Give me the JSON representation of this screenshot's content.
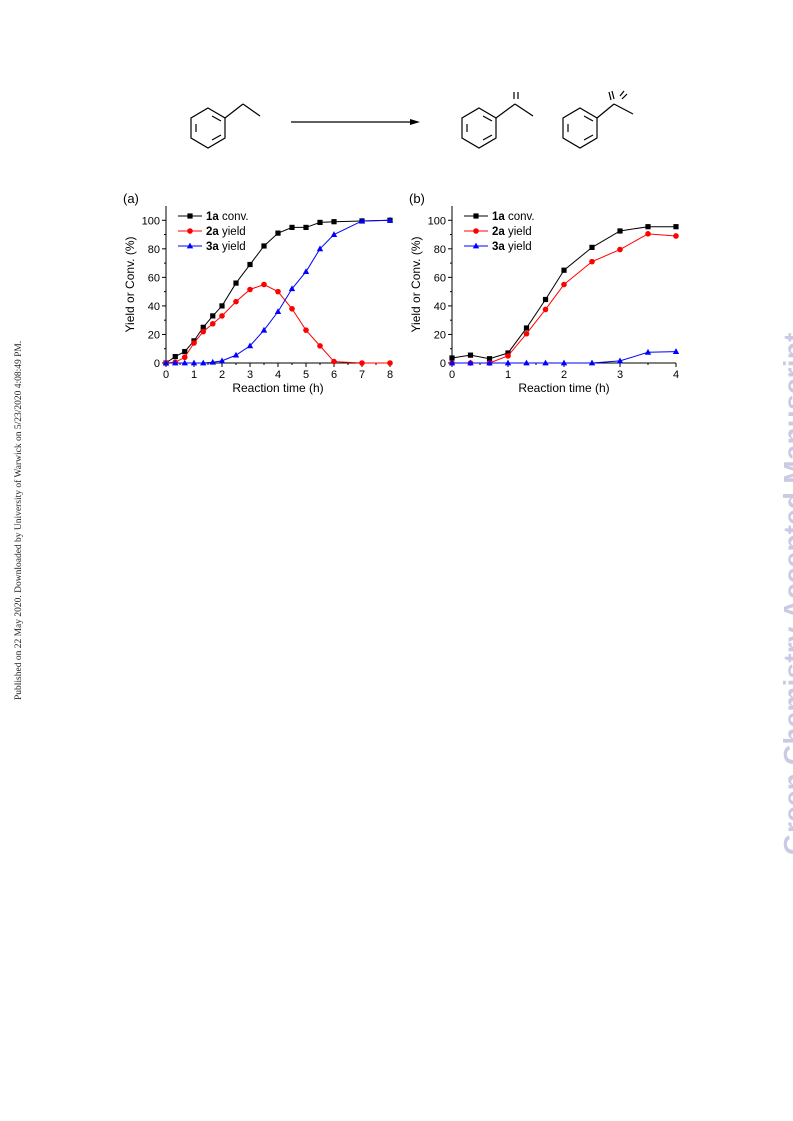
{
  "side_note": "Published on 22 May 2020. Downloaded by University of Warwick on 5/23/2020 4:08:49 PM.",
  "watermark": "Green Chemistry Accepted Manuscript",
  "chart_data": [
    {
      "type": "line",
      "panel_label": "(a)",
      "xlabel": "Reaction time (h)",
      "ylabel": "Yield or Conv. (%)",
      "xlim": [
        0,
        8
      ],
      "ylim": [
        0,
        110
      ],
      "xticks": [
        0,
        1,
        2,
        3,
        4,
        5,
        6,
        7,
        8
      ],
      "yticks": [
        0,
        20,
        40,
        60,
        80,
        100
      ],
      "legend_position": "top-left",
      "series": [
        {
          "name_bold": "1a",
          "name_rest": " conv.",
          "color": "#000000",
          "marker": "square",
          "x": [
            0,
            0.33,
            0.67,
            1,
            1.33,
            1.67,
            2,
            2.5,
            3,
            3.5,
            4,
            4.5,
            5,
            5.5,
            6,
            7,
            8
          ],
          "y": [
            0,
            4.5,
            8,
            15.5,
            25,
            33,
            40,
            56,
            69,
            82,
            91,
            95,
            95,
            98.5,
            99,
            99.5,
            100
          ]
        },
        {
          "name_bold": "2a",
          "name_rest": " yield",
          "color": "#ff0000",
          "marker": "circle",
          "x": [
            0,
            0.33,
            0.67,
            1,
            1.33,
            1.67,
            2,
            2.5,
            3,
            3.5,
            4,
            4.5,
            5,
            5.5,
            6,
            7,
            8
          ],
          "y": [
            0,
            0.5,
            4,
            14,
            22,
            27.5,
            33,
            43,
            51.5,
            55,
            50,
            38,
            23,
            12,
            1,
            0,
            0
          ]
        },
        {
          "name_bold": "3a",
          "name_rest": " yield",
          "color": "#0000ff",
          "marker": "triangle",
          "x": [
            0,
            0.33,
            0.67,
            1,
            1.33,
            1.67,
            2,
            2.5,
            3,
            3.5,
            4,
            4.5,
            5,
            5.5,
            6,
            7,
            8
          ],
          "y": [
            0,
            0,
            0,
            0,
            0,
            0.5,
            1.5,
            5.5,
            12,
            23,
            36,
            52,
            64,
            80,
            90,
            99.5,
            100
          ]
        }
      ]
    },
    {
      "type": "line",
      "panel_label": "(b)",
      "xlabel": "Reaction time (h)",
      "ylabel": "Yield or Conv. (%)",
      "xlim": [
        0,
        4
      ],
      "ylim": [
        0,
        110
      ],
      "xticks": [
        0,
        1,
        2,
        3,
        4
      ],
      "yticks": [
        0,
        20,
        40,
        60,
        80,
        100
      ],
      "legend_position": "top-left",
      "series": [
        {
          "name_bold": "1a",
          "name_rest": " conv.",
          "color": "#000000",
          "marker": "square",
          "x": [
            0,
            0.33,
            0.67,
            1,
            1.33,
            1.67,
            2,
            2.5,
            3,
            3.5,
            4
          ],
          "y": [
            3.5,
            5.5,
            3,
            7,
            24.5,
            44.5,
            65,
            81,
            92.5,
            95.5,
            95.5
          ]
        },
        {
          "name_bold": "2a",
          "name_rest": " yield",
          "color": "#ff0000",
          "marker": "circle",
          "x": [
            0,
            0.33,
            0.67,
            1,
            1.33,
            1.67,
            2,
            2.5,
            3,
            3.5,
            4
          ],
          "y": [
            0,
            0,
            0,
            5,
            20.5,
            37.5,
            55,
            71,
            79.5,
            90.5,
            89
          ]
        },
        {
          "name_bold": "3a",
          "name_rest": " yield",
          "color": "#0000ff",
          "marker": "triangle",
          "x": [
            0,
            0.33,
            0.67,
            1,
            1.33,
            1.67,
            2,
            2.5,
            3,
            3.5,
            4
          ],
          "y": [
            0,
            0,
            0,
            0,
            0,
            0,
            0,
            0,
            1.5,
            7.5,
            8
          ]
        }
      ]
    }
  ]
}
